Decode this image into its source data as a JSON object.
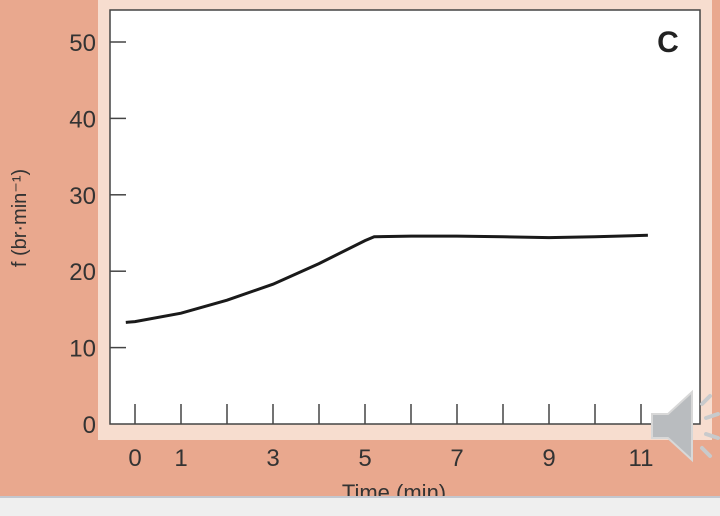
{
  "chart_data": {
    "type": "line",
    "panel_label": "C",
    "xlabel": "Time (min)",
    "ylabel": "f (br·min⁻¹)",
    "xlim": [
      -0.2,
      11.15
    ],
    "ylim": [
      0,
      50
    ],
    "x_ticks": [
      0,
      1,
      2,
      3,
      4,
      5,
      6,
      7,
      8,
      9,
      10,
      11
    ],
    "x_tick_labels": [
      "0",
      "1",
      "3",
      "5",
      "7",
      "9",
      "11"
    ],
    "x_tick_label_values": [
      0,
      1,
      3,
      5,
      7,
      9,
      11
    ],
    "y_ticks": [
      0,
      10,
      20,
      30,
      40,
      50
    ],
    "y_tick_labels": [
      "0",
      "10",
      "20",
      "30",
      "40",
      "50"
    ],
    "grid": false,
    "series": [
      {
        "x": [
          -0.2,
          0,
          1,
          2,
          3,
          4,
          5,
          5.2,
          6,
          7,
          8,
          9,
          10,
          11.15
        ],
        "y": [
          13.3,
          13.4,
          14.5,
          16.2,
          18.3,
          21.0,
          24.0,
          24.5,
          24.6,
          24.6,
          24.5,
          24.4,
          24.5,
          24.7
        ],
        "color": "#1a1a1a"
      }
    ]
  },
  "colors": {
    "background": "#e9a88e",
    "frame": "#f7ddcf",
    "plot": "#ffffff"
  },
  "icons": {
    "speaker": "speaker-icon"
  }
}
